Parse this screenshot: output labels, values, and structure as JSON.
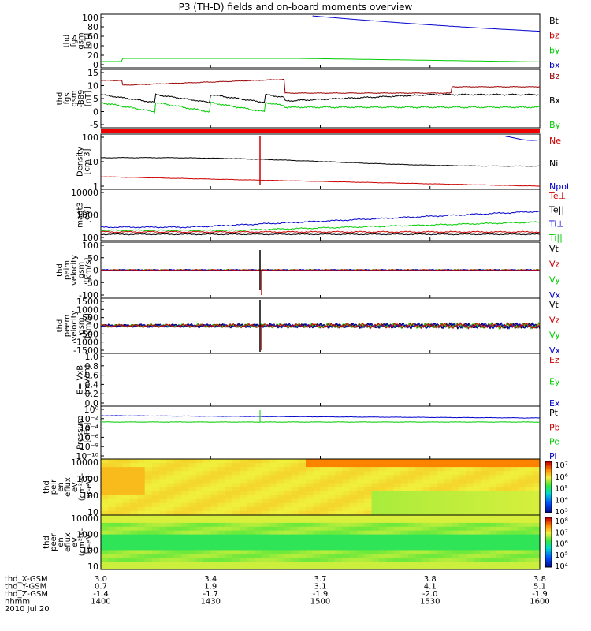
{
  "title": "P3 (TH-D) fields and on-board moments overview",
  "colors": {
    "black": "#000000",
    "red": "#cc0000",
    "green": "#00cc00",
    "blue": "#0000cc",
    "darkred": "#990000"
  },
  "chart_data": [
    {
      "type": "line",
      "ylabel": [
        "thd",
        "fgs",
        "gsm",
        "[nT]"
      ],
      "ylim": [
        -10,
        100
      ],
      "yticks": [
        "100",
        "80",
        "60",
        "40",
        "20",
        "0"
      ],
      "legend": [
        {
          "name": "Bt",
          "color": "#000000"
        },
        {
          "name": "bz",
          "color": "#cc0000"
        },
        {
          "name": "by",
          "color": "#00cc00"
        },
        {
          "name": "bx",
          "color": "#0000cc"
        }
      ]
    },
    {
      "type": "line",
      "ylabel": [
        "thd",
        "fgs",
        "gsm",
        "-B89",
        "[nT]"
      ],
      "ylim": [
        -8,
        16
      ],
      "yticks": [
        "15",
        "10",
        "5",
        "0",
        "-5"
      ],
      "legend": [
        {
          "name": "Bz",
          "color": "#990000"
        },
        {
          "name": "Bx",
          "color": "#000000"
        },
        {
          "name": "By",
          "color": "#00cc00"
        }
      ]
    },
    {
      "type": "line",
      "ylabel": [
        "Density",
        "[cm-3]"
      ],
      "yscale": "log",
      "yticks": [
        "100",
        "10",
        "1"
      ],
      "legend": [
        {
          "name": "Ne",
          "color": "#cc0000"
        },
        {
          "name": "Ni",
          "color": "#000000"
        },
        {
          "name": "Npot",
          "color": "#0000cc"
        }
      ]
    },
    {
      "type": "line",
      "ylabel": [
        "magt3",
        "[eV]"
      ],
      "yscale": "log",
      "yticks": [
        "10000",
        "1000",
        "100"
      ],
      "legend": [
        {
          "name": "Te⊥",
          "color": "#cc0000"
        },
        {
          "name": "Te||",
          "color": "#000000"
        },
        {
          "name": "Ti⊥",
          "color": "#0000cc"
        },
        {
          "name": "Ti||",
          "color": "#00cc00"
        }
      ]
    },
    {
      "type": "line",
      "ylabel": [
        "thd",
        "peim",
        "velocity",
        "gsm",
        "[km/s]"
      ],
      "ylim": [
        -100,
        100
      ],
      "yticks": [
        "100",
        "50",
        "0",
        "-50",
        "-100"
      ],
      "legend": [
        {
          "name": "Vt",
          "color": "#000000"
        },
        {
          "name": "Vz",
          "color": "#cc0000"
        },
        {
          "name": "Vy",
          "color": "#00cc00"
        },
        {
          "name": "Vx",
          "color": "#0000cc"
        }
      ]
    },
    {
      "type": "line",
      "ylabel": [
        "thd",
        "peem",
        "velocity",
        "gsm",
        "[km/s]"
      ],
      "ylim": [
        -1500,
        1500
      ],
      "yticks": [
        "1500",
        "1000",
        "500",
        "0",
        "-500",
        "-1000",
        "-1500"
      ],
      "legend": [
        {
          "name": "Vt",
          "color": "#000000"
        },
        {
          "name": "Vz",
          "color": "#cc0000"
        },
        {
          "name": "Vy",
          "color": "#00cc00"
        },
        {
          "name": "Vx",
          "color": "#0000cc"
        }
      ]
    },
    {
      "type": "line",
      "ylabel": [
        "E=-VxB",
        "[mV/m]"
      ],
      "ylim": [
        0,
        1
      ],
      "yticks": [
        "1.0",
        "0.8",
        "0.6",
        "0.4",
        "0.2",
        "0.0"
      ],
      "legend": [
        {
          "name": "Ez",
          "color": "#cc0000"
        },
        {
          "name": "Ey",
          "color": "#00cc00"
        },
        {
          "name": "Ex",
          "color": "#0000cc"
        }
      ]
    },
    {
      "type": "line",
      "ylabel": [
        "Pressure",
        "[nPa]"
      ],
      "yscale": "log",
      "yticks": [
        "10⁰",
        "10⁻²",
        "10⁻⁴",
        "10⁻⁶",
        "10⁻⁸",
        "10⁻¹⁰"
      ],
      "legend": [
        {
          "name": "Pt",
          "color": "#000000"
        },
        {
          "name": "Pb",
          "color": "#cc0000"
        },
        {
          "name": "Pe",
          "color": "#00cc00"
        },
        {
          "name": "Pi",
          "color": "#0000cc"
        }
      ]
    },
    {
      "type": "heatmap",
      "ylabel": [
        "thd",
        "peir",
        "en",
        "eflux",
        "eV",
        "(cm²-s-",
        "sr-eV)"
      ],
      "yscale": "log",
      "yticks": [
        "10000",
        "1000",
        "100",
        "10"
      ],
      "colorbar": [
        "10⁷",
        "10⁶",
        "10⁵",
        "10⁴",
        "10³"
      ]
    },
    {
      "type": "heatmap",
      "ylabel": [
        "thd",
        "peer",
        "en",
        "eflux",
        "eV",
        "(cm²-s-",
        "sr-eV)"
      ],
      "yscale": "log",
      "yticks": [
        "10000",
        "1000",
        "100",
        "10"
      ],
      "colorbar": [
        "10⁸",
        "10⁷",
        "10⁶",
        "10⁵",
        "10⁴"
      ]
    }
  ],
  "xaxis": {
    "rows": [
      {
        "label": "thd_X-GSM",
        "values": [
          "3.0",
          "3.4",
          "3.7",
          "3.8",
          "3.8"
        ]
      },
      {
        "label": "thd_Y-GSM",
        "values": [
          "0.7",
          "1.9",
          "3.1",
          "4.1",
          "5.1"
        ]
      },
      {
        "label": "thd_Z-GSM",
        "values": [
          "-1.4",
          "-1.7",
          "-1.9",
          "-2.0",
          "-1.9"
        ]
      },
      {
        "label": "hhmm",
        "values": [
          "1400",
          "1430",
          "1500",
          "1530",
          "1600"
        ]
      }
    ],
    "date": "2010 Jul 20"
  }
}
